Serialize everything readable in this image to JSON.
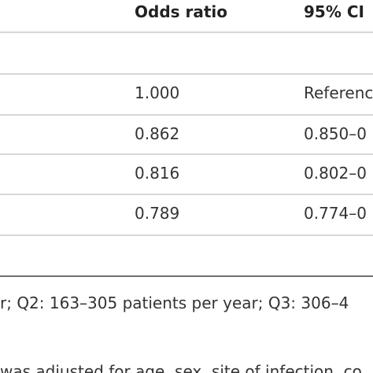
{
  "table": {
    "headers": {
      "odds_ratio": "Odds ratio",
      "ci": "95% CI"
    },
    "rows": [
      {
        "odds_ratio": "1.000",
        "ci": "Referenc"
      },
      {
        "odds_ratio": "0.862",
        "ci": "0.850–0"
      },
      {
        "odds_ratio": "0.816",
        "ci": "0.802–0"
      },
      {
        "odds_ratio": "0.789",
        "ci": "0.774–0"
      }
    ]
  },
  "footnotes": {
    "line1": "r; Q2: 163–305 patients per year; Q3: 306–4",
    "line2": "was adjusted for age, sex, site of infection, co"
  }
}
